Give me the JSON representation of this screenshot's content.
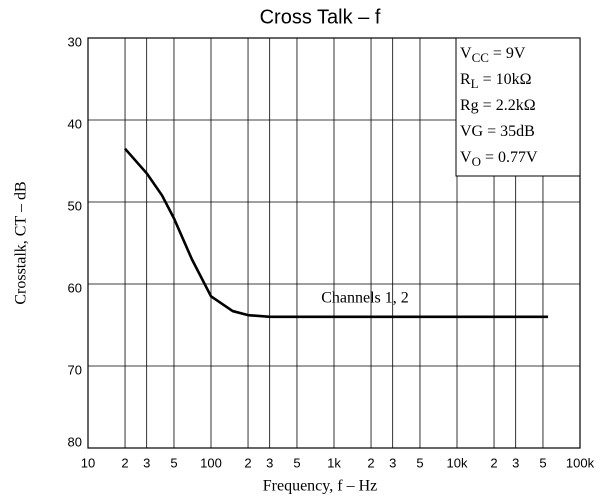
{
  "chart_data": {
    "type": "line",
    "title": "Cross Talk  –  f",
    "x_label": "Frequency, f  –  Hz",
    "y_label": "Crosstalk, CT  –  dB",
    "x_log": true,
    "xlim": [
      10,
      100000
    ],
    "ylim": [
      80,
      30
    ],
    "xticks": [
      10,
      {
        "value": 20,
        "label": "2"
      },
      {
        "value": 30,
        "label": "3"
      },
      {
        "value": 50,
        "label": "5"
      },
      100,
      {
        "value": 200,
        "label": "2"
      },
      {
        "value": 300,
        "label": "3"
      },
      {
        "value": 500,
        "label": "5"
      },
      {
        "value": 1000,
        "label": "1k"
      },
      {
        "value": 2000,
        "label": "2"
      },
      {
        "value": 3000,
        "label": "3"
      },
      {
        "value": 5000,
        "label": "5"
      },
      {
        "value": 10000,
        "label": "10k"
      },
      {
        "value": 20000,
        "label": "2"
      },
      {
        "value": 30000,
        "label": "3"
      },
      {
        "value": 50000,
        "label": "5"
      },
      {
        "value": 100000,
        "label": "100k"
      }
    ],
    "yticks": [
      30,
      40,
      50,
      60,
      70,
      80
    ],
    "grid": true,
    "series": [
      {
        "name": "Channels 1, 2",
        "color": "#000000",
        "x": [
          20,
          30,
          40,
          50,
          70,
          100,
          150,
          200,
          300,
          1000,
          10000,
          55000
        ],
        "values": [
          43.5,
          46.5,
          49.2,
          52,
          57,
          61.5,
          63.3,
          63.8,
          64,
          64,
          64,
          64
        ]
      }
    ],
    "conditions": [
      {
        "base": "V",
        "sub": "CC",
        "tail": " = 9V"
      },
      {
        "base": "R",
        "sub": "L",
        "tail": " = 10kΩ"
      },
      {
        "base": "Rg = 2.2kΩ"
      },
      {
        "base": "VG = 35dB"
      },
      {
        "base": "V",
        "sub": "O",
        "tail": " = 0.77V"
      }
    ]
  }
}
